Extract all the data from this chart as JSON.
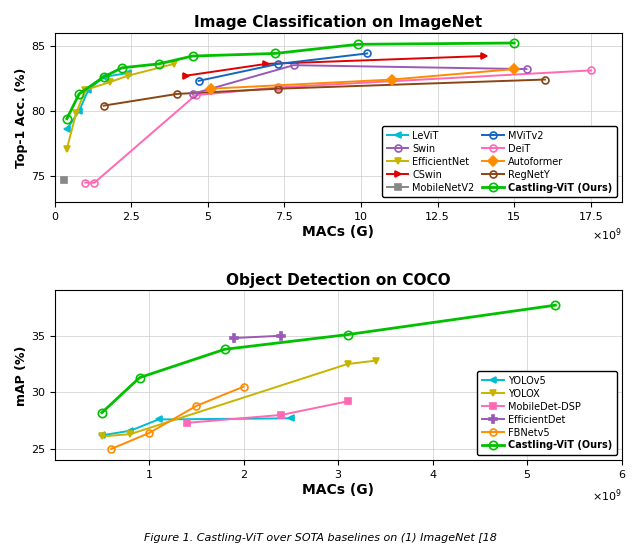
{
  "top_title": "Image Classification on ImageNet",
  "bottom_title": "Object Detection on COCO",
  "caption": "Figure 1. Castling-ViT over SOTA baselines on (1) ImageNet [18",
  "top": {
    "xlabel": "MACs (G)",
    "ylabel": "Top-1 Acc. (%)",
    "xlim": [
      0,
      18.5
    ],
    "ylim": [
      73,
      86
    ],
    "yticks": [
      75,
      80,
      85
    ],
    "xticks": [
      0.0,
      2.5,
      5.0,
      7.5,
      10.0,
      12.5,
      15.0,
      17.5
    ],
    "legend_order": [
      "LeViT",
      "Swin",
      "EfficientNet",
      "CSwin",
      "MobileNetV2",
      "MViTv2",
      "DeiT",
      "Autoformer",
      "RegNetY",
      "Castling-ViT (Ours)"
    ],
    "series": [
      {
        "label": "LeViT",
        "color": "#00bcd4",
        "marker": "<",
        "markersize": 5,
        "x": [
          0.4,
          0.8,
          1.1,
          1.6,
          2.4
        ],
        "y": [
          78.6,
          80.0,
          81.6,
          82.6,
          82.9
        ]
      },
      {
        "label": "EfficientNet",
        "color": "#c8b400",
        "marker": "v",
        "markersize": 5,
        "x": [
          0.4,
          0.7,
          1.0,
          1.8,
          2.4,
          3.9
        ],
        "y": [
          77.1,
          79.8,
          81.6,
          82.2,
          82.7,
          83.6
        ]
      },
      {
        "label": "MobileNetV2",
        "color": "#888888",
        "marker": "s",
        "markersize": 5,
        "x": [
          0.3
        ],
        "y": [
          74.7
        ]
      },
      {
        "label": "DeiT",
        "color": "#ff69b4",
        "marker": "o",
        "markersize": 5,
        "x": [
          1.0,
          1.3,
          4.6,
          7.3,
          17.5
        ],
        "y": [
          74.5,
          74.5,
          81.2,
          81.8,
          83.1
        ]
      },
      {
        "label": "RegNetY",
        "color": "#8b4513",
        "marker": "o",
        "markersize": 5,
        "x": [
          1.6,
          4.0,
          7.3,
          16.0
        ],
        "y": [
          80.4,
          81.3,
          81.7,
          82.4
        ]
      },
      {
        "label": "Swin",
        "color": "#9b59b6",
        "marker": "o",
        "markersize": 5,
        "x": [
          4.5,
          7.8,
          15.4
        ],
        "y": [
          81.3,
          83.5,
          83.2
        ]
      },
      {
        "label": "CSwin",
        "color": "#e00000",
        "marker": ">",
        "markersize": 5,
        "x": [
          4.3,
          6.9,
          14.0
        ],
        "y": [
          82.7,
          83.6,
          84.2
        ]
      },
      {
        "label": "MViTv2",
        "color": "#1565c0",
        "marker": "o",
        "markersize": 5,
        "x": [
          4.7,
          7.3,
          10.2
        ],
        "y": [
          82.3,
          83.6,
          84.4
        ]
      },
      {
        "label": "Autoformer",
        "color": "#ff8c00",
        "marker": "D",
        "markersize": 5,
        "x": [
          5.1,
          11.0,
          15.0
        ],
        "y": [
          81.7,
          82.4,
          83.2
        ]
      },
      {
        "label": "Castling-ViT (Ours)",
        "color": "#00c000",
        "marker": "o",
        "markersize": 6,
        "x": [
          0.4,
          0.8,
          1.6,
          2.2,
          3.4,
          4.5,
          7.2,
          9.9,
          15.0
        ],
        "y": [
          79.4,
          81.3,
          82.6,
          83.3,
          83.6,
          84.2,
          84.4,
          85.1,
          85.2
        ]
      }
    ]
  },
  "bottom": {
    "xlabel": "MACs (G)",
    "ylabel": "mAP (%)",
    "xlim": [
      0,
      6.0
    ],
    "ylim": [
      24,
      39
    ],
    "yticks": [
      25,
      30,
      35
    ],
    "xticks": [
      1.0,
      2.0,
      3.0,
      4.0,
      5.0,
      6.0
    ],
    "series": [
      {
        "label": "YOLOv5",
        "color": "#00bcd4",
        "marker": "<",
        "markersize": 5,
        "x": [
          0.5,
          0.8,
          1.1,
          2.5
        ],
        "y": [
          26.2,
          26.6,
          27.6,
          27.7
        ]
      },
      {
        "label": "YOLOX",
        "color": "#c8b400",
        "marker": "v",
        "markersize": 5,
        "x": [
          0.5,
          0.8,
          3.1,
          3.4
        ],
        "y": [
          26.1,
          26.3,
          32.5,
          32.8
        ]
      },
      {
        "label": "MobileDet-DSP",
        "color": "#ff69b4",
        "marker": "s",
        "markersize": 5,
        "x": [
          1.4,
          2.4,
          3.1
        ],
        "y": [
          27.3,
          28.0,
          29.2
        ]
      },
      {
        "label": "EfficientDet",
        "color": "#9b59b6",
        "marker": "P",
        "markersize": 6,
        "x": [
          1.9,
          2.4
        ],
        "y": [
          34.8,
          35.0
        ]
      },
      {
        "label": "FBNetv5",
        "color": "#ff8c00",
        "marker": "o",
        "markersize": 5,
        "x": [
          0.6,
          1.0,
          1.5,
          2.0
        ],
        "y": [
          25.0,
          26.4,
          28.8,
          30.5
        ]
      },
      {
        "label": "Castling-ViT (Ours)",
        "color": "#00c000",
        "marker": "o",
        "markersize": 6,
        "x": [
          0.5,
          0.9,
          1.8,
          3.1,
          5.3
        ],
        "y": [
          28.2,
          31.3,
          33.8,
          35.1,
          37.7
        ]
      }
    ]
  }
}
